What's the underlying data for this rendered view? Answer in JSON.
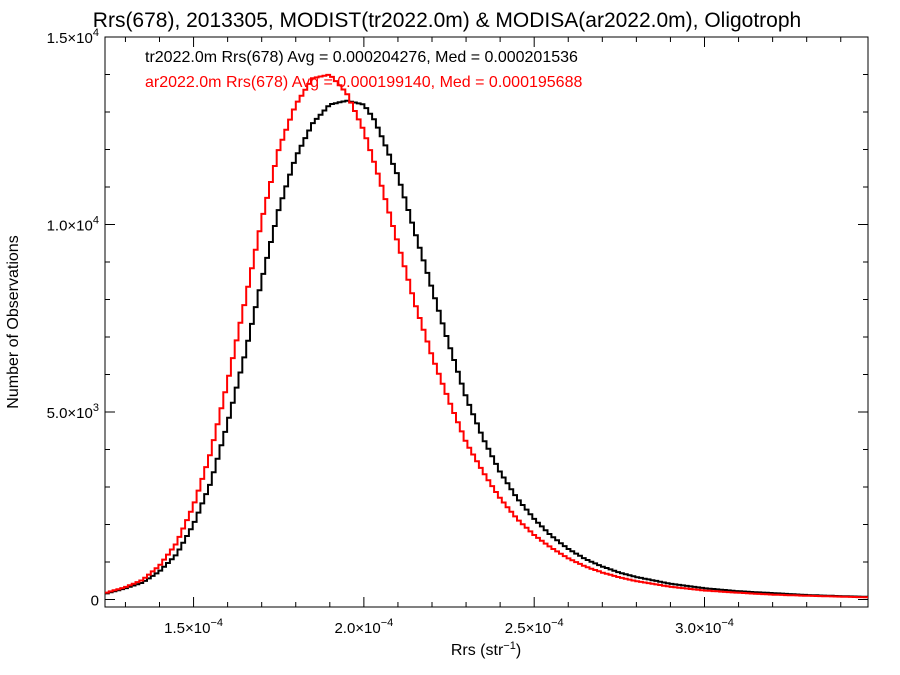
{
  "chart_data": {
    "type": "line",
    "title": "Rrs(678), 2013305, MODIST(tr2022.0m) & MODISA(ar2022.0m), Oligotroph",
    "xlabel": {
      "base": "Rrs (str",
      "sup": "-1",
      "tail": ")"
    },
    "ylabel": "Number of Observations",
    "xlim": [
      0.000124,
      0.000348
    ],
    "ylim": [
      -200,
      15000
    ],
    "x_ticks": [
      {
        "value": 0.00015,
        "mant": "1.5",
        "exp": "-4"
      },
      {
        "value": 0.0002,
        "mant": "2.0",
        "exp": "-4"
      },
      {
        "value": 0.00025,
        "mant": "2.5",
        "exp": "-4"
      },
      {
        "value": 0.0003,
        "mant": "3.0",
        "exp": "-4"
      }
    ],
    "y_ticks": [
      {
        "value": 0,
        "mant": "0",
        "exp": ""
      },
      {
        "value": 5000,
        "mant": "5.0",
        "exp": "3"
      },
      {
        "value": 10000,
        "mant": "1.0",
        "exp": "4"
      },
      {
        "value": 15000,
        "mant": "1.5",
        "exp": "4"
      }
    ],
    "series": [
      {
        "name": "tr2022.0m",
        "color": "#000000",
        "legend_text": "tr2022.0m Rrs(678) Avg = 0.000204276, Med = 0.000201536",
        "x": [
          0.000124,
          0.00013,
          0.000135,
          0.00014,
          0.000145,
          0.00015,
          0.000155,
          0.00016,
          0.000165,
          0.00017,
          0.000175,
          0.00018,
          0.000185,
          0.00019,
          0.000195,
          0.0002,
          0.000203,
          0.000205,
          0.00021,
          0.000215,
          0.00022,
          0.000225,
          0.00023,
          0.000235,
          0.00024,
          0.000245,
          0.00025,
          0.000255,
          0.00026,
          0.000265,
          0.00027,
          0.000275,
          0.00028,
          0.00029,
          0.0003,
          0.00031,
          0.00032,
          0.00033,
          0.00034,
          0.000348
        ],
        "y": [
          150,
          300,
          450,
          750,
          1200,
          2000,
          3100,
          4700,
          6500,
          8500,
          10400,
          11800,
          12700,
          13200,
          13300,
          13200,
          12800,
          12400,
          11300,
          9800,
          8300,
          6800,
          5400,
          4300,
          3400,
          2700,
          2150,
          1700,
          1350,
          1080,
          880,
          720,
          600,
          420,
          300,
          220,
          170,
          120,
          90,
          70
        ]
      },
      {
        "name": "ar2022.0m",
        "color": "#ff0000",
        "legend_text": "ar2022.0m Rrs(678) Avg = 0.000199140, Med = 0.000195688",
        "x": [
          0.000124,
          0.00013,
          0.000135,
          0.00014,
          0.000145,
          0.00015,
          0.000155,
          0.00016,
          0.000165,
          0.00017,
          0.000175,
          0.00018,
          0.000185,
          0.00019,
          0.000195,
          0.0002,
          0.000205,
          0.00021,
          0.000215,
          0.00022,
          0.000225,
          0.00023,
          0.000235,
          0.00024,
          0.000245,
          0.00025,
          0.000255,
          0.00026,
          0.000265,
          0.00027,
          0.000275,
          0.00028,
          0.00029,
          0.0003,
          0.00031,
          0.00032,
          0.00033,
          0.00034,
          0.000348
        ],
        "y": [
          170,
          330,
          520,
          900,
          1500,
          2500,
          3900,
          5800,
          7900,
          10100,
          12000,
          13200,
          13900,
          14000,
          13500,
          12500,
          11100,
          9500,
          7900,
          6500,
          5300,
          4200,
          3400,
          2700,
          2150,
          1720,
          1380,
          1100,
          880,
          720,
          590,
          490,
          340,
          240,
          180,
          130,
          100,
          75,
          60
        ]
      }
    ]
  }
}
